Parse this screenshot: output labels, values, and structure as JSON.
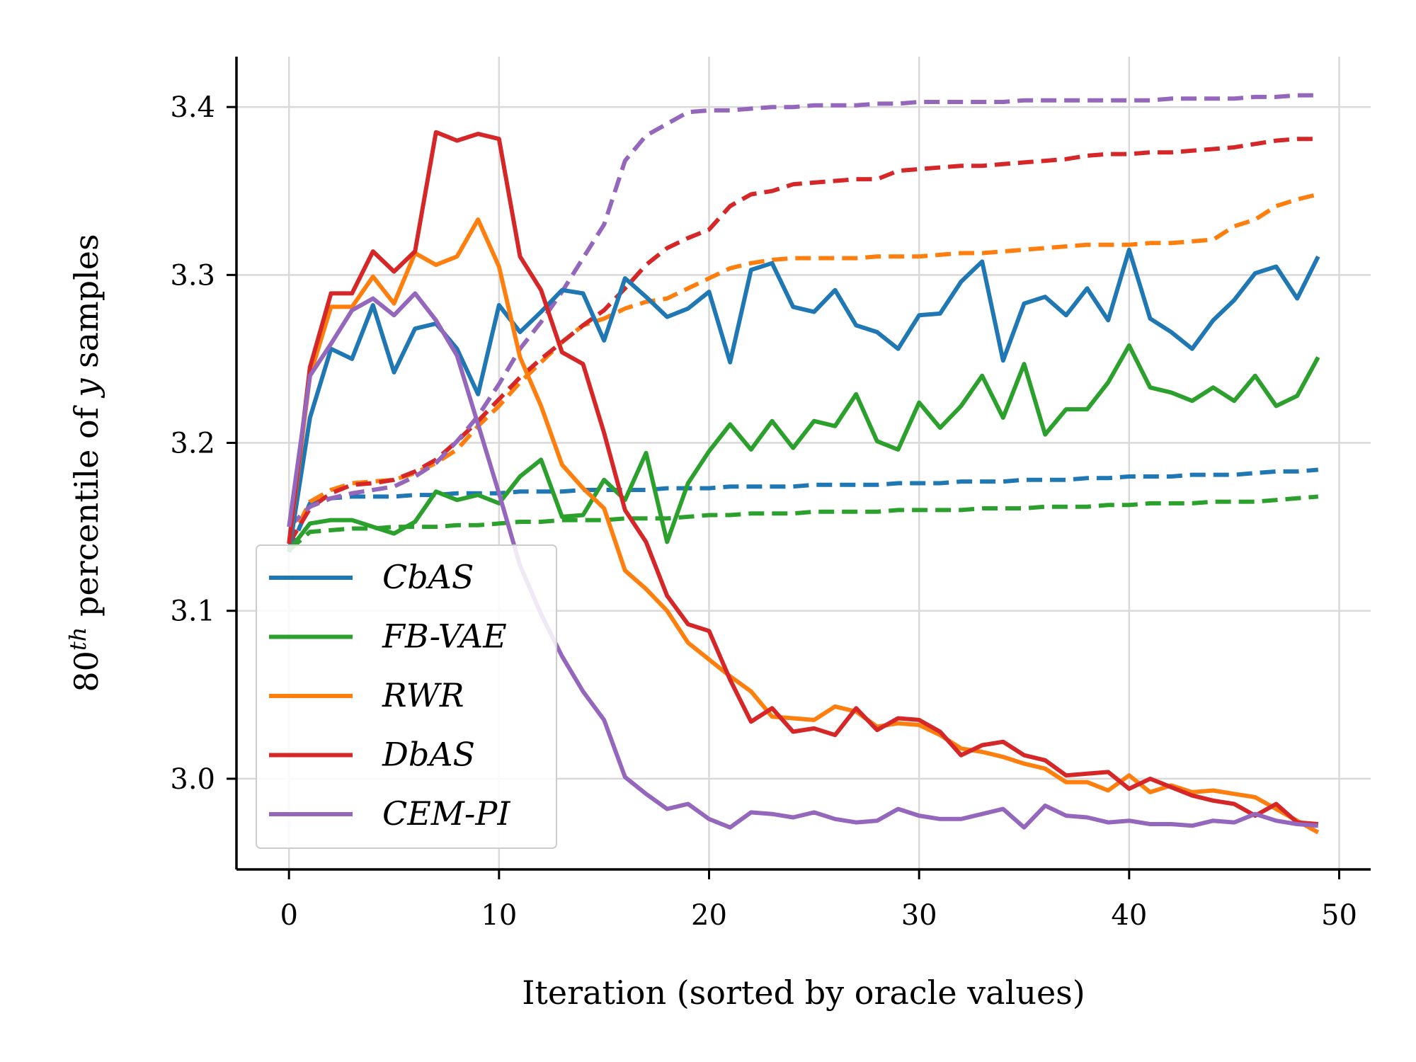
{
  "chart_data": {
    "type": "line",
    "xlabel": "Iteration (sorted by oracle values)",
    "ylabel_base": "80",
    "ylabel_sup": "th",
    "ylabel_pre": " percentile of ",
    "ylabel_var": "y",
    "ylabel_post": " samples",
    "xlim": [
      -2.5,
      51.5
    ],
    "ylim": [
      2.946,
      3.43
    ],
    "xticks": [
      0,
      10,
      20,
      30,
      40,
      50
    ],
    "xtick_labels": [
      "0",
      "10",
      "20",
      "30",
      "40",
      "50"
    ],
    "yticks": [
      3.0,
      3.1,
      3.2,
      3.3,
      3.4
    ],
    "ytick_labels": [
      "3.0",
      "3.1",
      "3.2",
      "3.3",
      "3.4"
    ],
    "grid": true,
    "legend_position": "lower-left",
    "x": [
      0,
      1,
      2,
      3,
      4,
      5,
      6,
      7,
      8,
      9,
      10,
      11,
      12,
      13,
      14,
      15,
      16,
      17,
      18,
      19,
      20,
      21,
      22,
      23,
      24,
      25,
      26,
      27,
      28,
      29,
      30,
      31,
      32,
      33,
      34,
      35,
      36,
      37,
      38,
      39,
      40,
      41,
      42,
      43,
      44,
      45,
      46,
      47,
      48,
      49
    ],
    "series": [
      {
        "name": "CbAS",
        "color": "#1f77b4",
        "style": "solid",
        "in_legend": true,
        "values": [
          3.135,
          3.215,
          3.256,
          3.25,
          3.282,
          3.242,
          3.268,
          3.271,
          3.256,
          3.229,
          3.282,
          3.266,
          3.278,
          3.291,
          3.289,
          3.261,
          3.298,
          3.287,
          3.275,
          3.28,
          3.29,
          3.248,
          3.303,
          3.307,
          3.281,
          3.278,
          3.291,
          3.27,
          3.266,
          3.256,
          3.276,
          3.277,
          3.296,
          3.308,
          3.249,
          3.283,
          3.287,
          3.276,
          3.292,
          3.273,
          3.315,
          3.274,
          3.266,
          3.256,
          3.273,
          3.285,
          3.301,
          3.305,
          3.286,
          3.311
        ]
      },
      {
        "name": "FB-VAE",
        "color": "#2ca02c",
        "style": "solid",
        "in_legend": true,
        "values": [
          3.136,
          3.152,
          3.154,
          3.154,
          3.15,
          3.146,
          3.153,
          3.171,
          3.166,
          3.169,
          3.164,
          3.18,
          3.19,
          3.156,
          3.157,
          3.178,
          3.166,
          3.194,
          3.141,
          3.176,
          3.195,
          3.211,
          3.196,
          3.213,
          3.197,
          3.213,
          3.21,
          3.229,
          3.201,
          3.196,
          3.224,
          3.209,
          3.222,
          3.24,
          3.215,
          3.247,
          3.205,
          3.22,
          3.22,
          3.236,
          3.258,
          3.233,
          3.23,
          3.225,
          3.233,
          3.225,
          3.24,
          3.222,
          3.228,
          3.251
        ]
      },
      {
        "name": "RWR",
        "color": "#ff7f0e",
        "style": "solid",
        "in_legend": true,
        "values": [
          3.14,
          3.24,
          3.281,
          3.281,
          3.299,
          3.283,
          3.313,
          3.306,
          3.311,
          3.333,
          3.305,
          3.251,
          3.222,
          3.187,
          3.173,
          3.161,
          3.124,
          3.113,
          3.1,
          3.081,
          3.071,
          3.061,
          3.052,
          3.037,
          3.036,
          3.035,
          3.043,
          3.04,
          3.031,
          3.033,
          3.032,
          3.026,
          3.018,
          3.016,
          3.013,
          3.009,
          3.006,
          2.998,
          2.998,
          2.993,
          3.002,
          2.992,
          2.996,
          2.992,
          2.993,
          2.991,
          2.989,
          2.982,
          2.975,
          2.968
        ]
      },
      {
        "name": "DbAS",
        "color": "#d62728",
        "style": "solid",
        "in_legend": true,
        "values": [
          3.14,
          3.245,
          3.289,
          3.289,
          3.314,
          3.302,
          3.314,
          3.385,
          3.38,
          3.384,
          3.381,
          3.311,
          3.291,
          3.254,
          3.247,
          3.206,
          3.16,
          3.141,
          3.109,
          3.092,
          3.088,
          3.059,
          3.034,
          3.042,
          3.028,
          3.03,
          3.026,
          3.042,
          3.029,
          3.036,
          3.035,
          3.028,
          3.014,
          3.02,
          3.022,
          3.014,
          3.011,
          3.002,
          3.003,
          3.004,
          2.994,
          3.0,
          2.995,
          2.99,
          2.987,
          2.985,
          2.978,
          2.985,
          2.974,
          2.973
        ]
      },
      {
        "name": "CEM-PI",
        "color": "#9467bd",
        "style": "solid",
        "in_legend": true,
        "values": [
          3.15,
          3.24,
          3.259,
          3.279,
          3.286,
          3.276,
          3.289,
          3.273,
          3.252,
          3.211,
          3.17,
          3.127,
          3.098,
          3.073,
          3.052,
          3.035,
          3.001,
          2.991,
          2.982,
          2.985,
          2.976,
          2.971,
          2.98,
          2.979,
          2.977,
          2.98,
          2.976,
          2.974,
          2.975,
          2.982,
          2.978,
          2.976,
          2.976,
          2.979,
          2.982,
          2.971,
          2.984,
          2.978,
          2.977,
          2.974,
          2.975,
          2.973,
          2.973,
          2.972,
          2.975,
          2.974,
          2.979,
          2.975,
          2.973,
          2.972
        ]
      },
      {
        "name": "CbAS-dashed",
        "color": "#1f77b4",
        "style": "dashed",
        "in_legend": false,
        "values": [
          3.135,
          3.164,
          3.167,
          3.168,
          3.168,
          3.168,
          3.169,
          3.169,
          3.17,
          3.17,
          3.17,
          3.171,
          3.171,
          3.171,
          3.172,
          3.172,
          3.172,
          3.172,
          3.173,
          3.173,
          3.173,
          3.174,
          3.174,
          3.174,
          3.174,
          3.175,
          3.175,
          3.175,
          3.175,
          3.176,
          3.176,
          3.176,
          3.177,
          3.177,
          3.177,
          3.178,
          3.178,
          3.178,
          3.179,
          3.179,
          3.18,
          3.18,
          3.18,
          3.181,
          3.181,
          3.181,
          3.182,
          3.183,
          3.183,
          3.184
        ]
      },
      {
        "name": "FB-VAE-dashed",
        "color": "#2ca02c",
        "style": "dashed",
        "in_legend": false,
        "values": [
          3.136,
          3.147,
          3.148,
          3.149,
          3.149,
          3.15,
          3.15,
          3.15,
          3.151,
          3.151,
          3.152,
          3.153,
          3.153,
          3.154,
          3.154,
          3.154,
          3.155,
          3.155,
          3.155,
          3.156,
          3.157,
          3.157,
          3.158,
          3.158,
          3.158,
          3.159,
          3.159,
          3.159,
          3.159,
          3.16,
          3.16,
          3.16,
          3.16,
          3.161,
          3.161,
          3.161,
          3.162,
          3.162,
          3.162,
          3.163,
          3.163,
          3.164,
          3.164,
          3.164,
          3.165,
          3.165,
          3.165,
          3.166,
          3.167,
          3.168
        ]
      },
      {
        "name": "RWR-dashed",
        "color": "#ff7f0e",
        "style": "dashed",
        "in_legend": false,
        "values": [
          3.14,
          3.165,
          3.172,
          3.176,
          3.177,
          3.178,
          3.182,
          3.188,
          3.196,
          3.21,
          3.222,
          3.236,
          3.248,
          3.26,
          3.27,
          3.274,
          3.28,
          3.284,
          3.286,
          3.292,
          3.298,
          3.304,
          3.307,
          3.309,
          3.31,
          3.31,
          3.31,
          3.31,
          3.311,
          3.311,
          3.311,
          3.312,
          3.313,
          3.313,
          3.314,
          3.315,
          3.316,
          3.317,
          3.318,
          3.318,
          3.318,
          3.319,
          3.319,
          3.32,
          3.321,
          3.329,
          3.333,
          3.341,
          3.345,
          3.348
        ]
      },
      {
        "name": "DbAS-dashed",
        "color": "#d62728",
        "style": "dashed",
        "in_legend": false,
        "values": [
          3.14,
          3.161,
          3.17,
          3.175,
          3.176,
          3.178,
          3.183,
          3.19,
          3.201,
          3.213,
          3.226,
          3.239,
          3.25,
          3.26,
          3.27,
          3.279,
          3.292,
          3.306,
          3.316,
          3.322,
          3.327,
          3.341,
          3.348,
          3.35,
          3.354,
          3.355,
          3.356,
          3.357,
          3.357,
          3.362,
          3.363,
          3.364,
          3.365,
          3.365,
          3.366,
          3.367,
          3.368,
          3.369,
          3.371,
          3.372,
          3.372,
          3.373,
          3.373,
          3.374,
          3.375,
          3.376,
          3.378,
          3.38,
          3.381,
          3.381
        ]
      },
      {
        "name": "CEM-PI-dashed",
        "color": "#9467bd",
        "style": "dashed",
        "in_legend": false,
        "values": [
          3.15,
          3.162,
          3.167,
          3.17,
          3.172,
          3.174,
          3.18,
          3.188,
          3.201,
          3.216,
          3.235,
          3.256,
          3.272,
          3.29,
          3.31,
          3.33,
          3.368,
          3.383,
          3.39,
          3.397,
          3.398,
          3.398,
          3.399,
          3.4,
          3.4,
          3.401,
          3.401,
          3.401,
          3.402,
          3.402,
          3.403,
          3.403,
          3.403,
          3.403,
          3.403,
          3.404,
          3.404,
          3.404,
          3.404,
          3.404,
          3.404,
          3.404,
          3.405,
          3.405,
          3.405,
          3.405,
          3.406,
          3.406,
          3.407,
          3.407
        ]
      }
    ]
  }
}
